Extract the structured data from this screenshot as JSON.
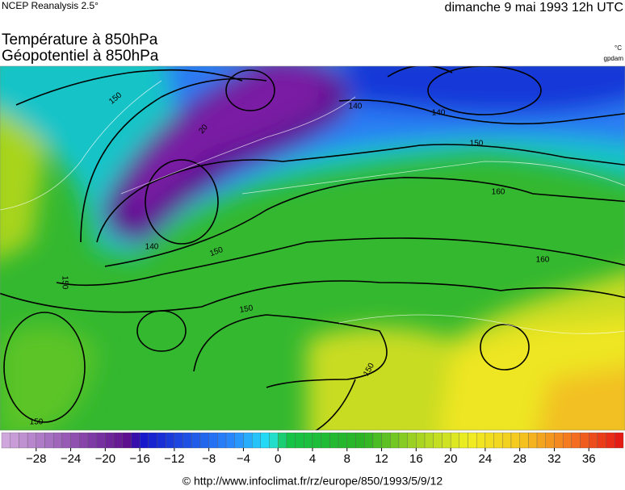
{
  "header": {
    "source": "NCEP Reanalysis 2.5°",
    "date": "dimanche 9 mai 1993 12h UTC",
    "title_1": "Température à 850hPa",
    "title_2": "Géopotentiel à 850hPa",
    "unit_1": "°C",
    "unit_2": "gpdam"
  },
  "map": {
    "contour_labels": [
      "150",
      "20",
      "140",
      "140",
      "150",
      "160",
      "140",
      "150",
      "150",
      "150",
      "160",
      "150",
      "150"
    ]
  },
  "colorbar": {
    "range": [
      -32,
      40
    ],
    "color_stops": [
      [
        -32,
        "#d4acdf"
      ],
      [
        -17,
        "#5a0a8c"
      ],
      [
        -16,
        "#1414c8"
      ],
      [
        -5,
        "#2a8cff"
      ],
      [
        -1,
        "#22e4f4"
      ],
      [
        0,
        "#22d8a0"
      ],
      [
        1,
        "#14c448"
      ],
      [
        10,
        "#2cb424"
      ],
      [
        16,
        "#a4d422"
      ],
      [
        22,
        "#f0ee22"
      ],
      [
        28,
        "#f4c81e"
      ],
      [
        34,
        "#f47420"
      ],
      [
        40,
        "#e41414"
      ]
    ],
    "ticks": [
      {
        "value": -28,
        "label": "−28"
      },
      {
        "value": -24,
        "label": "−24"
      },
      {
        "value": -20,
        "label": "−20"
      },
      {
        "value": -16,
        "label": "−16"
      },
      {
        "value": -12,
        "label": "−12"
      },
      {
        "value": -8,
        "label": "−8"
      },
      {
        "value": -4,
        "label": "−4"
      },
      0,
      4,
      8,
      12,
      16,
      20,
      24,
      28,
      32,
      36
    ]
  },
  "footer": "© http://www.infoclimat.fr/rz/europe/850/1993/5/9/12"
}
